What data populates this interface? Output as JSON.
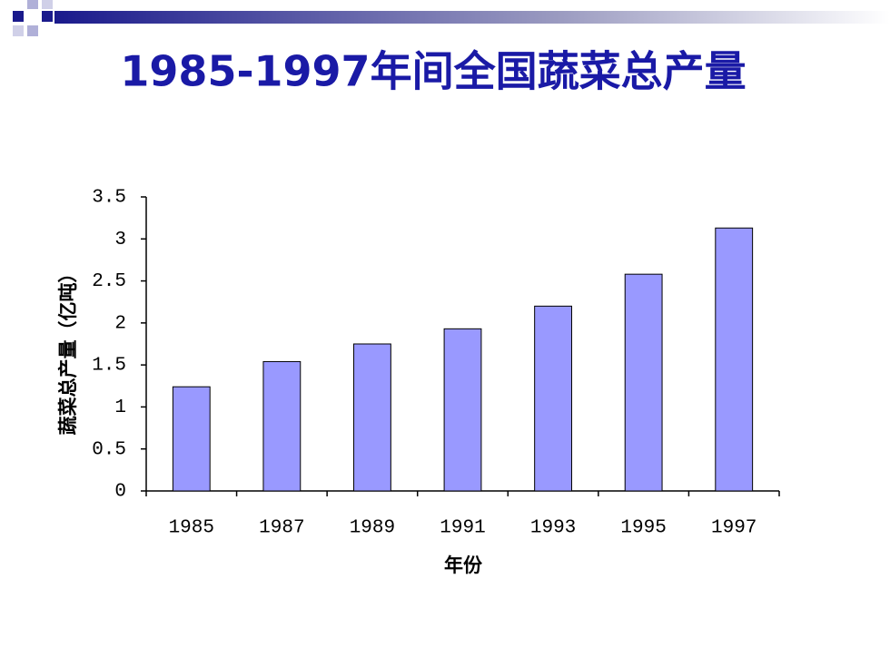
{
  "chart_data": {
    "type": "bar",
    "title": "1985-1997年间全国蔬菜总产量",
    "x_label": "年份",
    "y_label": "蔬菜总产量（亿吨）",
    "categories": [
      "1985",
      "1987",
      "1989",
      "1991",
      "1993",
      "1995",
      "1997"
    ],
    "values": [
      1.24,
      1.54,
      1.75,
      1.93,
      2.2,
      2.58,
      3.13
    ],
    "color": "#9999ff",
    "ylim": [
      0,
      3.5
    ],
    "yticks": [
      0,
      0.5,
      1,
      1.5,
      2,
      2.5,
      3,
      3.5
    ],
    "grid": false
  }
}
